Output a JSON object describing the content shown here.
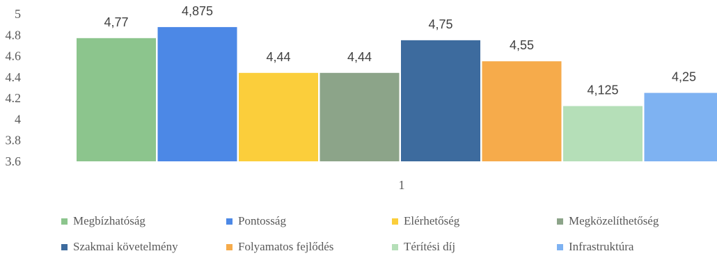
{
  "chart_data": {
    "type": "bar",
    "categories": [
      "1"
    ],
    "ylim": [
      3.6,
      5
    ],
    "yticks": [
      "5",
      "4.8",
      "4.6",
      "4.4",
      "4.2",
      "4",
      "3.8",
      "3.6"
    ],
    "grid": false,
    "legend_position": "bottom",
    "series": [
      {
        "name": "Megbízhatóság",
        "value": 4.77,
        "label": "4,77",
        "color": "#8cc58d"
      },
      {
        "name": "Pontosság",
        "value": 4.875,
        "label": "4,875",
        "color": "#4c88e6"
      },
      {
        "name": "Elérhetőség",
        "value": 4.44,
        "label": "4,44",
        "color": "#fbce3b"
      },
      {
        "name": "Megközelíthetőség",
        "value": 4.44,
        "label": "4,44",
        "color": "#8ca489"
      },
      {
        "name": "Szakmai követelmény",
        "value": 4.75,
        "label": "4,75",
        "color": "#3d6b9e"
      },
      {
        "name": "Folyamatos fejlődés",
        "value": 4.55,
        "label": "4,55",
        "color": "#f6ab4b"
      },
      {
        "name": "Térítési díj",
        "value": 4.125,
        "label": "4,125",
        "color": "#b5dfb8"
      },
      {
        "name": "Infrastruktúra",
        "value": 4.25,
        "label": "4,25",
        "color": "#7eb2f2"
      }
    ]
  }
}
